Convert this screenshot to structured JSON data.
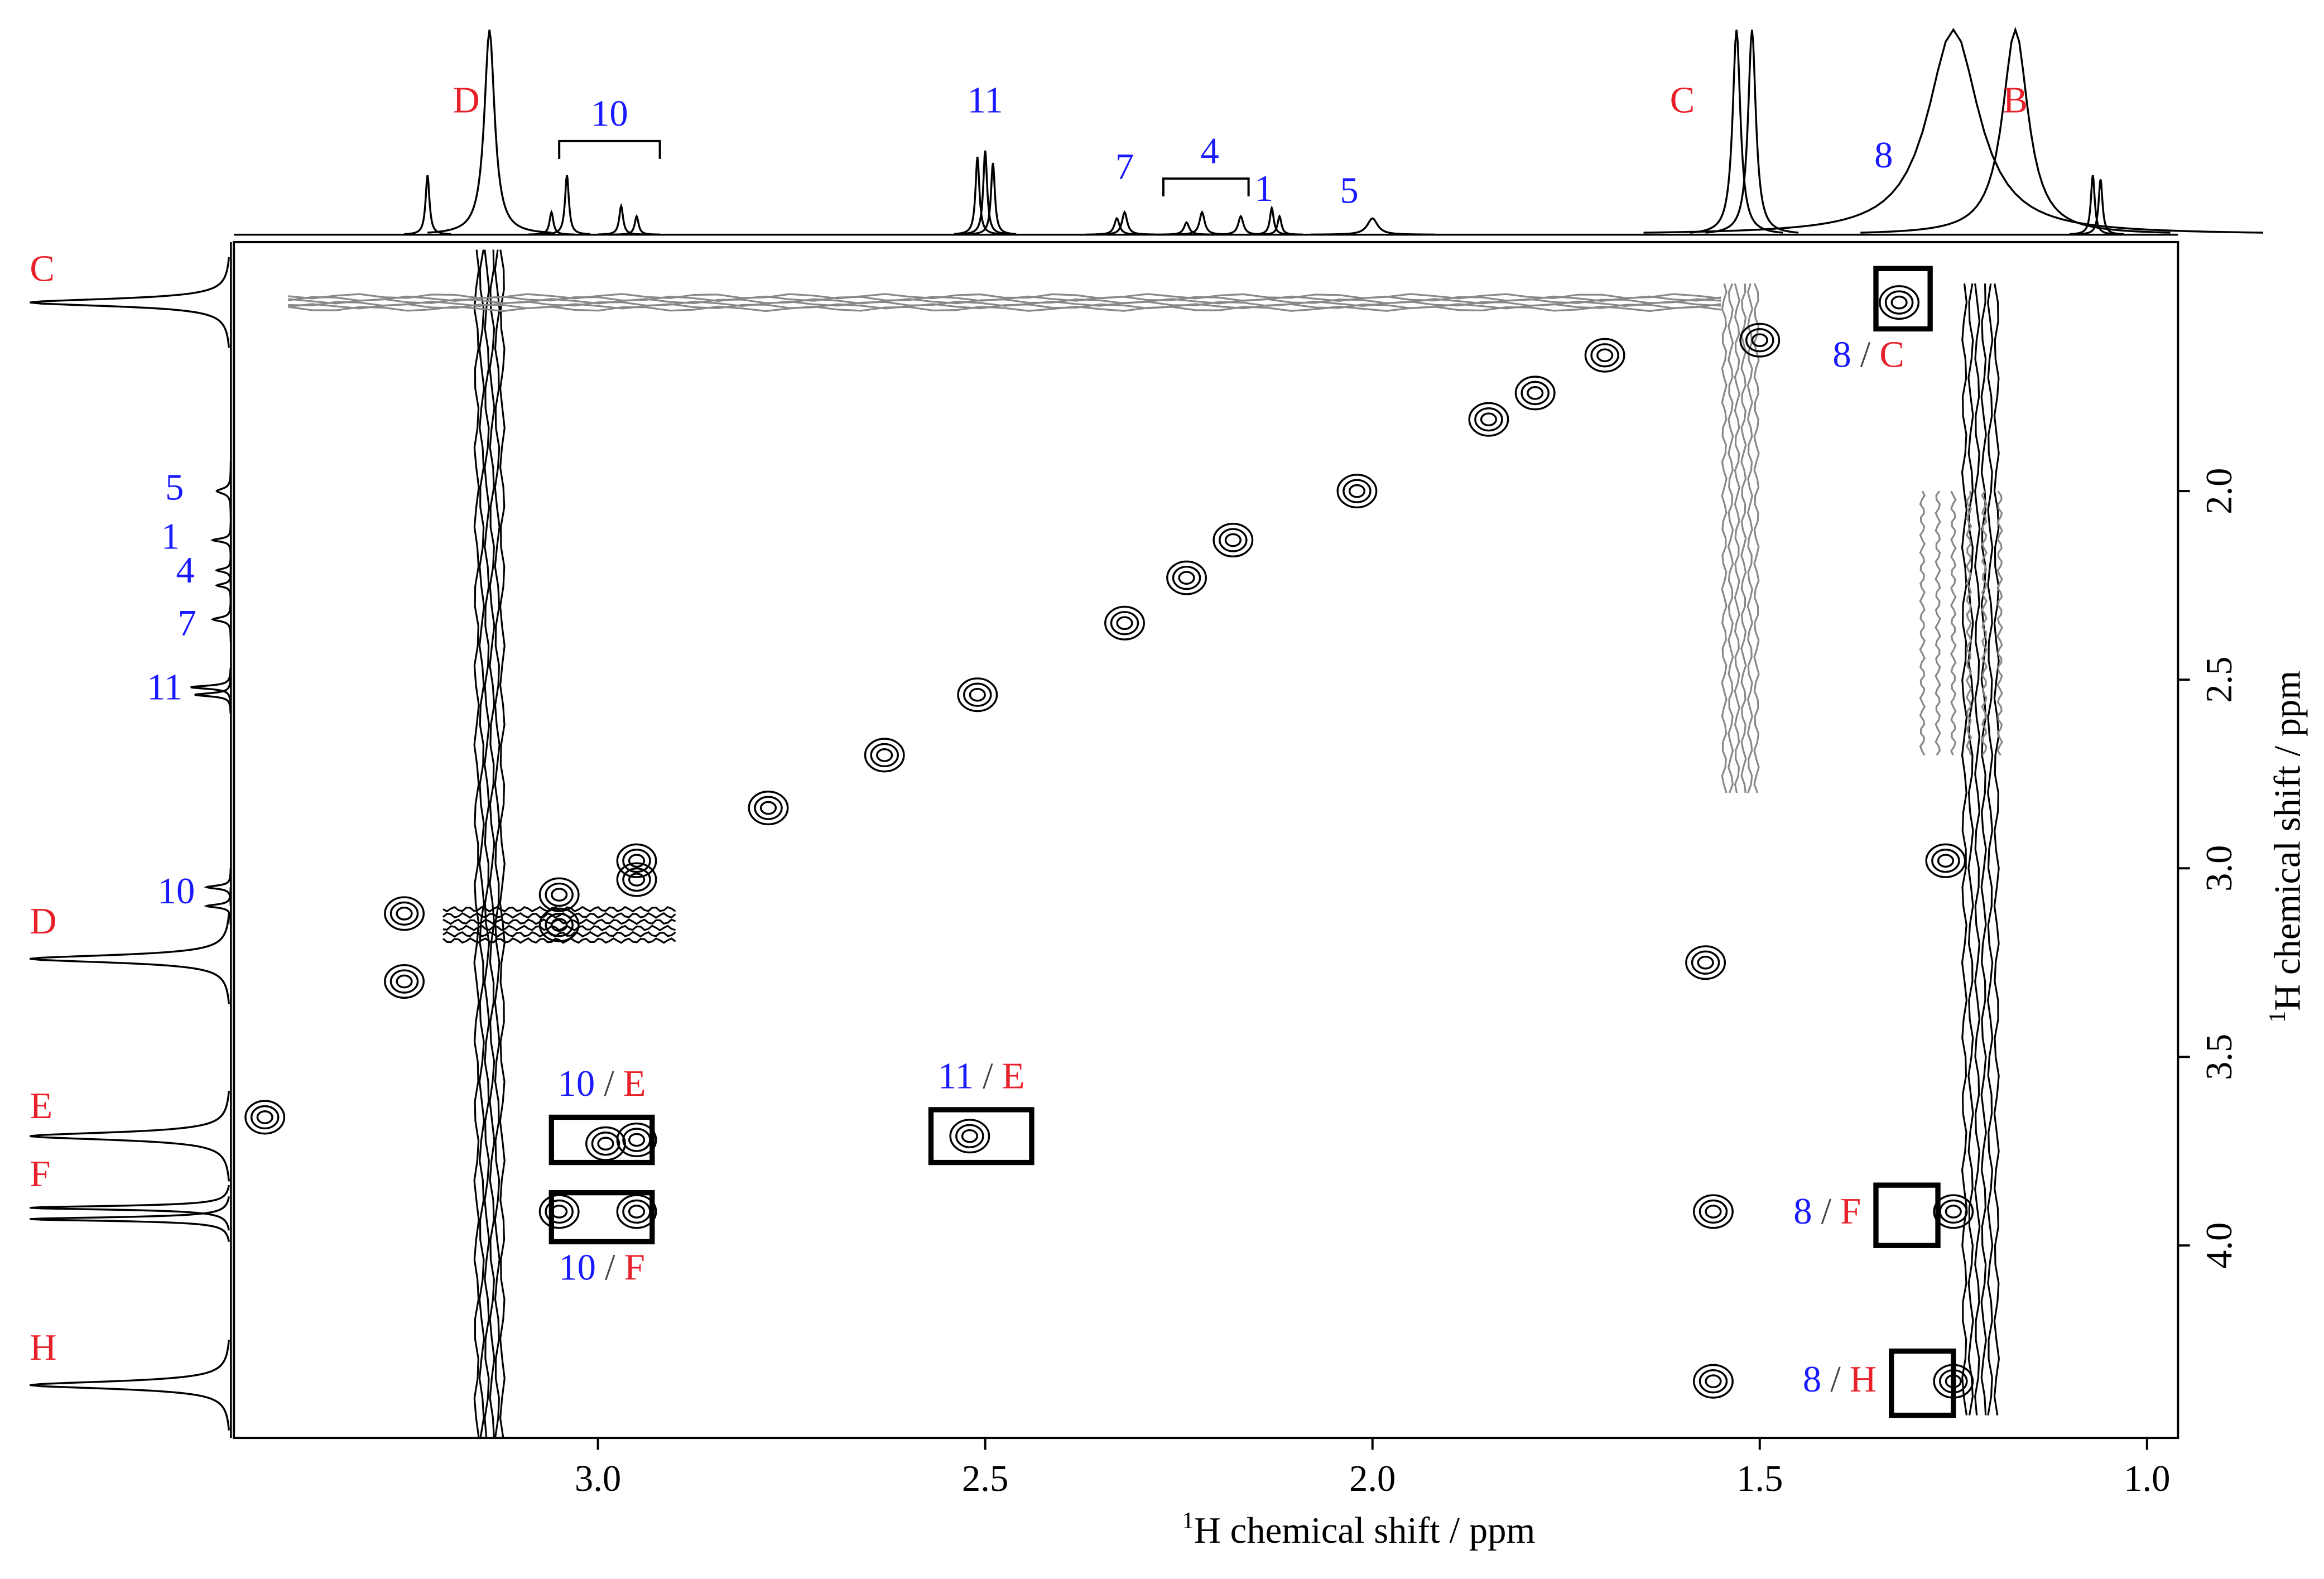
{
  "chart_data": {
    "type": "nmr2d",
    "x_label": {
      "sup": "1",
      "text": "H chemical shift / ppm"
    },
    "y_label": {
      "sup": "1",
      "text": "H chemical shift / ppm"
    },
    "xlim": [
      3.47,
      0.96
    ],
    "xticks": [
      {
        "value": 3,
        "label": "3.0"
      },
      {
        "value": 2.5,
        "label": "2.5"
      },
      {
        "value": 2,
        "label": "2.0"
      },
      {
        "value": 1.5,
        "label": "1.5"
      },
      {
        "value": 1,
        "label": "1.0"
      }
    ],
    "ylim": [
      1.34,
      4.51
    ],
    "yticks": [
      {
        "value": 2,
        "label": "2.0"
      },
      {
        "value": 2.5,
        "label": "2.5"
      },
      {
        "value": 3,
        "label": "3.0"
      },
      {
        "value": 3.5,
        "label": "3.5"
      },
      {
        "value": 4,
        "label": "4.0"
      }
    ],
    "label_colors": {
      "number": "#1a1aff",
      "letter": "#e8202a",
      "separator": "#444444"
    },
    "top_spectrum": {
      "peaks": [
        {
          "x": 3.22,
          "intensity": 29,
          "width": 0.003
        },
        {
          "x": 3.14,
          "intensity": 100,
          "width": 0.008
        },
        {
          "x": 3.06,
          "intensity": 11,
          "width": 0.003
        },
        {
          "x": 3.04,
          "intensity": 29,
          "width": 0.003
        },
        {
          "x": 2.97,
          "intensity": 14,
          "width": 0.003
        },
        {
          "x": 2.95,
          "intensity": 9,
          "width": 0.003
        },
        {
          "x": 2.51,
          "intensity": 38,
          "width": 0.003
        },
        {
          "x": 2.5,
          "intensity": 41,
          "width": 0.003
        },
        {
          "x": 2.49,
          "intensity": 35,
          "width": 0.003
        },
        {
          "x": 2.33,
          "intensity": 8,
          "width": 0.004
        },
        {
          "x": 2.32,
          "intensity": 11,
          "width": 0.004
        },
        {
          "x": 2.24,
          "intensity": 6,
          "width": 0.004
        },
        {
          "x": 2.22,
          "intensity": 11,
          "width": 0.004
        },
        {
          "x": 2.17,
          "intensity": 9,
          "width": 0.004
        },
        {
          "x": 2.13,
          "intensity": 13,
          "width": 0.003
        },
        {
          "x": 2.12,
          "intensity": 9,
          "width": 0.003
        },
        {
          "x": 2.0,
          "intensity": 8,
          "width": 0.008
        },
        {
          "x": 1.53,
          "intensity": 100,
          "width": 0.006
        },
        {
          "x": 1.51,
          "intensity": 100,
          "width": 0.006
        },
        {
          "x": 1.25,
          "intensity": 100,
          "width": 0.04
        },
        {
          "x": 1.17,
          "intensity": 100,
          "width": 0.02
        },
        {
          "x": 1.07,
          "intensity": 29,
          "width": 0.003
        },
        {
          "x": 1.06,
          "intensity": 27,
          "width": 0.003
        }
      ],
      "labels": [
        {
          "text": "D",
          "kind": "letter",
          "x": 3.17
        },
        {
          "text": "10",
          "kind": "number",
          "x": 2.985,
          "bracket": [
            3.05,
            2.92
          ]
        },
        {
          "text": "11",
          "kind": "number",
          "x": 2.5
        },
        {
          "text": "7",
          "kind": "number",
          "x": 2.32
        },
        {
          "text": "4",
          "kind": "number",
          "x": 2.21,
          "bracket": [
            2.27,
            2.16
          ]
        },
        {
          "text": "1",
          "kind": "number",
          "x": 2.14
        },
        {
          "text": "5",
          "kind": "number",
          "x": 2.03
        },
        {
          "text": "C",
          "kind": "letter",
          "x": 1.6
        },
        {
          "text": "8",
          "kind": "number",
          "x": 1.34
        },
        {
          "text": "B",
          "kind": "letter",
          "x": 1.17
        }
      ]
    },
    "left_spectrum": {
      "peaks": [
        {
          "y": 1.5,
          "intensity": 100,
          "width": 0.012
        },
        {
          "y": 2.0,
          "intensity": 7,
          "width": 0.008
        },
        {
          "y": 2.13,
          "intensity": 9,
          "width": 0.005
        },
        {
          "y": 2.21,
          "intensity": 7,
          "width": 0.005
        },
        {
          "y": 2.25,
          "intensity": 7,
          "width": 0.005
        },
        {
          "y": 2.34,
          "intensity": 9,
          "width": 0.006
        },
        {
          "y": 2.52,
          "intensity": 20,
          "width": 0.005
        },
        {
          "y": 2.54,
          "intensity": 18,
          "width": 0.005
        },
        {
          "y": 3.05,
          "intensity": 12,
          "width": 0.005
        },
        {
          "y": 3.1,
          "intensity": 12,
          "width": 0.005
        },
        {
          "y": 3.24,
          "intensity": 100,
          "width": 0.012
        },
        {
          "y": 3.71,
          "intensity": 100,
          "width": 0.012
        },
        {
          "y": 3.9,
          "intensity": 100,
          "width": 0.006
        },
        {
          "y": 3.93,
          "intensity": 100,
          "width": 0.006
        },
        {
          "y": 4.37,
          "intensity": 100,
          "width": 0.012
        }
      ],
      "labels": [
        {
          "text": "C",
          "kind": "letter",
          "y": 1.42
        },
        {
          "text": "5",
          "kind": "number",
          "y": 2.0
        },
        {
          "text": "1",
          "kind": "number",
          "y": 2.13
        },
        {
          "text": "4",
          "kind": "number",
          "y": 2.22
        },
        {
          "text": "7",
          "kind": "number",
          "y": 2.36
        },
        {
          "text": "11",
          "kind": "number",
          "y": 2.53
        },
        {
          "text": "10",
          "kind": "number",
          "y": 3.07
        },
        {
          "text": "D",
          "kind": "letter",
          "y": 3.15
        },
        {
          "text": "E",
          "kind": "letter",
          "y": 3.64
        },
        {
          "text": "F",
          "kind": "letter",
          "y": 3.82
        },
        {
          "text": "H",
          "kind": "letter",
          "y": 4.28
        }
      ]
    },
    "cross_peaks": {
      "x": [
        2.02,
        2.18,
        2.24,
        2.32,
        2.51,
        2.63,
        2.78,
        1.85,
        1.79,
        1.7,
        1.56,
        1.56,
        2.52,
        2.99,
        2.95,
        3.05,
        2.95,
        3.05,
        2.95,
        2.95,
        1.32,
        1.25,
        1.25,
        1.26,
        3.43,
        3.25,
        3.25,
        3.05,
        1.57,
        1.5
      ],
      "y": [
        2.0,
        2.13,
        2.23,
        2.35,
        2.54,
        2.7,
        2.84,
        1.81,
        1.74,
        1.64,
        3.91,
        4.36,
        3.71,
        3.73,
        3.72,
        3.91,
        3.91,
        3.07,
        3.03,
        2.98,
        1.5,
        3.91,
        4.36,
        2.98,
        3.66,
        3.12,
        3.3,
        3.15,
        3.25,
        1.6
      ]
    },
    "ridges": [
      {
        "x": [
          3.16,
          3.12
        ],
        "y": [
          1.36,
          4.51
        ],
        "color": "#000000"
      },
      {
        "x": [
          1.24,
          1.19
        ],
        "y": [
          1.45,
          4.45
        ],
        "color": "#000000"
      },
      {
        "x": [
          1.3,
          1.18
        ],
        "y": [
          2.0,
          2.7
        ],
        "color": "#888888"
      },
      {
        "x": [
          1.55,
          1.5
        ],
        "y": [
          1.45,
          2.8
        ],
        "color": "#888888"
      },
      {
        "x": [
          3.4,
          1.55
        ],
        "y": [
          1.48,
          1.52
        ],
        "color": "#888888"
      },
      {
        "x": [
          3.2,
          2.9
        ],
        "y": [
          3.1,
          3.2
        ],
        "color": "#000000"
      }
    ],
    "boxes": [
      {
        "from": "8",
        "separator": "/",
        "to": "C",
        "x": [
          1.35,
          1.28
        ],
        "y": [
          1.41,
          1.57
        ],
        "label_side": "below"
      },
      {
        "from": "10",
        "separator": "/",
        "to": "E",
        "x": [
          3.06,
          2.93
        ],
        "y": [
          3.66,
          3.78
        ],
        "label_side": "above"
      },
      {
        "from": "10",
        "separator": "/",
        "to": "F",
        "x": [
          3.06,
          2.93
        ],
        "y": [
          3.86,
          3.99
        ],
        "label_side": "below"
      },
      {
        "from": "11",
        "separator": "/",
        "to": "E",
        "x": [
          2.57,
          2.44
        ],
        "y": [
          3.64,
          3.78
        ],
        "label_side": "above"
      },
      {
        "from": "8",
        "separator": "/",
        "to": "F",
        "x": [
          1.35,
          1.27
        ],
        "y": [
          3.84,
          4.0
        ],
        "label_side": "left"
      },
      {
        "from": "8",
        "separator": "/",
        "to": "H",
        "x": [
          1.33,
          1.25
        ],
        "y": [
          4.28,
          4.45
        ],
        "label_side": "left"
      }
    ]
  }
}
